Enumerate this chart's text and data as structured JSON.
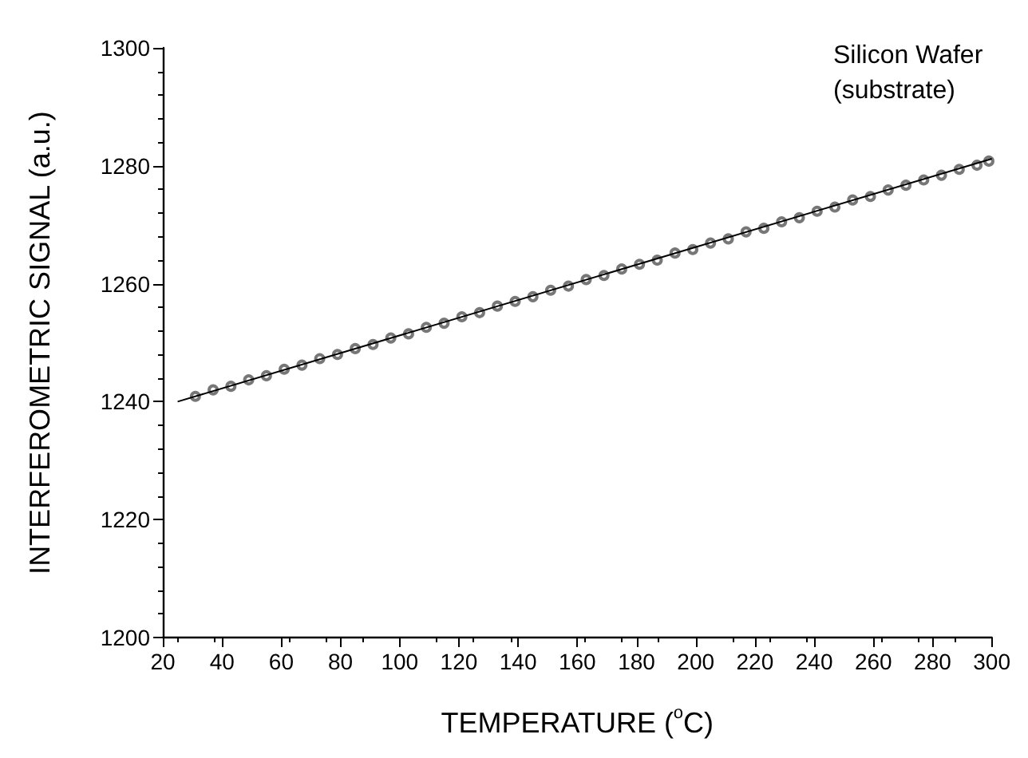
{
  "chart_data": {
    "type": "scatter",
    "xlabel": "TEMPERATURE ($^{o}$C)",
    "ylabel": "INTERFEROMETRIC SIGNAL (a.u.)",
    "annotations": [
      "Silicon Wafer (substrate)"
    ],
    "xlim": [
      20,
      300
    ],
    "xticks": [
      20,
      40,
      60,
      80,
      100,
      120,
      140,
      160,
      180,
      200,
      220,
      240,
      260,
      280,
      300
    ],
    "ylim": [
      1200,
      1300
    ],
    "yticks": [
      1200,
      1220,
      1240,
      1260,
      1280,
      1300
    ],
    "grid": false,
    "series": [
      {
        "marker": "circle",
        "color": "#555555",
        "x": [
          31,
          37,
          43,
          49,
          55,
          61,
          67,
          73,
          79,
          85,
          91,
          97,
          103,
          109,
          115,
          121,
          127,
          133,
          139,
          145,
          151,
          157,
          163,
          169,
          175,
          181,
          187,
          193,
          199,
          205,
          211,
          217,
          223,
          229,
          235,
          241,
          247,
          253,
          259,
          265,
          271,
          277,
          283,
          289,
          295,
          299
        ],
        "values": [
          1240.9,
          1242.0,
          1242.6,
          1243.7,
          1244.4,
          1245.5,
          1246.2,
          1247.3,
          1248.0,
          1249.0,
          1249.7,
          1250.8,
          1251.5,
          1252.6,
          1253.3,
          1254.4,
          1255.1,
          1256.2,
          1257.0,
          1257.8,
          1258.9,
          1259.6,
          1260.7,
          1261.4,
          1262.5,
          1263.3,
          1264.0,
          1265.2,
          1265.8,
          1266.9,
          1267.6,
          1268.8,
          1269.4,
          1270.5,
          1271.2,
          1272.3,
          1273.0,
          1274.2,
          1274.8,
          1275.9,
          1276.7,
          1277.6,
          1278.4,
          1279.4,
          1280.1,
          1280.8
        ]
      },
      {
        "type": "line",
        "marker": "none",
        "line_style": "solid",
        "color": "#000000",
        "x": [
          25,
          300
        ],
        "values": [
          1240.0,
          1281.2
        ]
      }
    ]
  }
}
